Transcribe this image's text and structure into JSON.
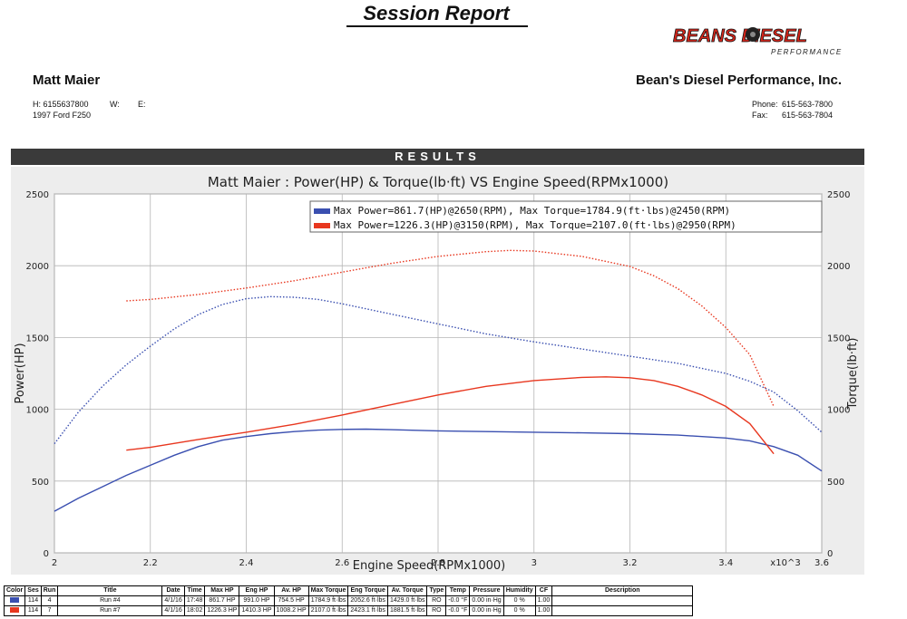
{
  "header": {
    "title": "Session Report",
    "logo_brand": "BEANS DIESEL",
    "logo_sub": "PERFORMANCE"
  },
  "customer": {
    "name": "Matt Maier",
    "phone_h": "H:  6155637800",
    "phone_w": "W:",
    "email": "E:",
    "vehicle": "1997 Ford F250"
  },
  "shop": {
    "name": "Bean's Diesel Performance, Inc.",
    "phone_label": "Phone:",
    "phone": "615-563-7800",
    "fax_label": "Fax:",
    "fax": "615-563-7804"
  },
  "results_header": "RESULTS",
  "colors": {
    "run4": "#3a4fb0",
    "run7": "#e8371f",
    "grid": "#b5b5b5",
    "panel": "#ededed",
    "plot": "#ffffff"
  },
  "chart_data": {
    "type": "line",
    "title": "Matt Maier : Power(HP) & Torque(lb·ft) VS Engine Speed(RPMx1000)",
    "xlabel": "Engine Speed(RPMx1000)",
    "ylabel_left": "Power(HP)",
    "ylabel_right": "Torque(lb·ft)",
    "x_multiplier_label": "x10^3",
    "xlim": [
      2.0,
      3.6
    ],
    "ylim": [
      0,
      2500
    ],
    "x_ticks": [
      "2",
      "2.2",
      "2.4",
      "2.6",
      "2.8",
      "3",
      "3.2",
      "3.4",
      "3.6"
    ],
    "x_tick_values": [
      2.0,
      2.2,
      2.4,
      2.6,
      2.8,
      3.0,
      3.2,
      3.4,
      3.6
    ],
    "y_ticks": [
      "0",
      "500",
      "1000",
      "1500",
      "2000",
      "2500"
    ],
    "y_tick_values": [
      0,
      500,
      1000,
      1500,
      2000,
      2500
    ],
    "grid": true,
    "legend_position": "top-right",
    "legend": [
      "Max Power=861.7(HP)@2650(RPM), Max Torque=1784.9(ft·lbs)@2450(RPM)",
      "Max Power=1226.3(HP)@3150(RPM), Max Torque=2107.0(ft·lbs)@2950(RPM)"
    ],
    "series": [
      {
        "name": "Run #4",
        "color": "#3a4fb0",
        "power": {
          "x": [
            2.0,
            2.05,
            2.1,
            2.15,
            2.2,
            2.25,
            2.3,
            2.35,
            2.4,
            2.45,
            2.5,
            2.55,
            2.6,
            2.65,
            2.7,
            2.8,
            2.9,
            3.0,
            3.1,
            3.2,
            3.3,
            3.4,
            3.45,
            3.5,
            3.55,
            3.6
          ],
          "y": [
            290,
            380,
            460,
            540,
            610,
            680,
            740,
            785,
            810,
            830,
            845,
            855,
            860,
            861.7,
            858,
            850,
            845,
            840,
            836,
            830,
            820,
            800,
            780,
            740,
            680,
            570
          ]
        },
        "torque": {
          "x": [
            2.0,
            2.05,
            2.1,
            2.15,
            2.2,
            2.25,
            2.3,
            2.35,
            2.4,
            2.45,
            2.5,
            2.55,
            2.6,
            2.7,
            2.8,
            2.9,
            3.0,
            3.1,
            3.2,
            3.3,
            3.4,
            3.45,
            3.5,
            3.55,
            3.6
          ],
          "y": [
            760,
            980,
            1160,
            1310,
            1440,
            1560,
            1660,
            1730,
            1770,
            1784.9,
            1780,
            1765,
            1735,
            1665,
            1595,
            1525,
            1470,
            1420,
            1370,
            1320,
            1250,
            1195,
            1120,
            990,
            840
          ]
        }
      },
      {
        "name": "Run #7",
        "color": "#e8371f",
        "power": {
          "x": [
            2.15,
            2.2,
            2.3,
            2.4,
            2.5,
            2.6,
            2.7,
            2.8,
            2.9,
            3.0,
            3.1,
            3.15,
            3.2,
            3.25,
            3.3,
            3.35,
            3.4,
            3.45,
            3.5
          ],
          "y": [
            715,
            735,
            790,
            840,
            895,
            960,
            1030,
            1100,
            1160,
            1200,
            1222,
            1226.3,
            1220,
            1200,
            1160,
            1100,
            1020,
            900,
            690
          ]
        },
        "torque": {
          "x": [
            2.15,
            2.2,
            2.3,
            2.4,
            2.5,
            2.6,
            2.7,
            2.8,
            2.9,
            2.95,
            3.0,
            3.1,
            3.2,
            3.25,
            3.3,
            3.35,
            3.4,
            3.45,
            3.5
          ],
          "y": [
            1755,
            1765,
            1800,
            1845,
            1895,
            1955,
            2015,
            2065,
            2098,
            2107.0,
            2102,
            2065,
            1995,
            1930,
            1840,
            1720,
            1570,
            1380,
            1020
          ]
        }
      }
    ]
  },
  "table": {
    "headers": [
      "Color",
      "Ses",
      "Run",
      "Title",
      "Date",
      "Time",
      "Max HP",
      "Eng HP",
      "Av. HP",
      "Max Torque",
      "Eng Torque",
      "Av. Torque",
      "Type",
      "Temp",
      "Pressure",
      "Humidity",
      "CF",
      "Description"
    ],
    "rows": [
      {
        "color": "#3a4fb0",
        "cells": [
          "114",
          "4",
          "Run #4",
          "4/1/16",
          "17:48",
          "861.7 HP",
          "991.0 HP",
          "754.5 HP",
          "1784.9 ft·lbs",
          "2052.6 ft·lbs",
          "1429.0 ft·lbs",
          "RO",
          "-0.0 °F",
          "0.00 in·Hg",
          "0 %",
          "1.00",
          ""
        ]
      },
      {
        "color": "#e8371f",
        "cells": [
          "114",
          "7",
          "Run #7",
          "4/1/16",
          "18:02",
          "1226.3 HP",
          "1410.3 HP",
          "1008.2 HP",
          "2107.0 ft·lbs",
          "2423.1 ft·lbs",
          "1881.5 ft·lbs",
          "RO",
          "-0.0 °F",
          "0.00 in·Hg",
          "0 %",
          "1.00",
          ""
        ]
      }
    ]
  }
}
